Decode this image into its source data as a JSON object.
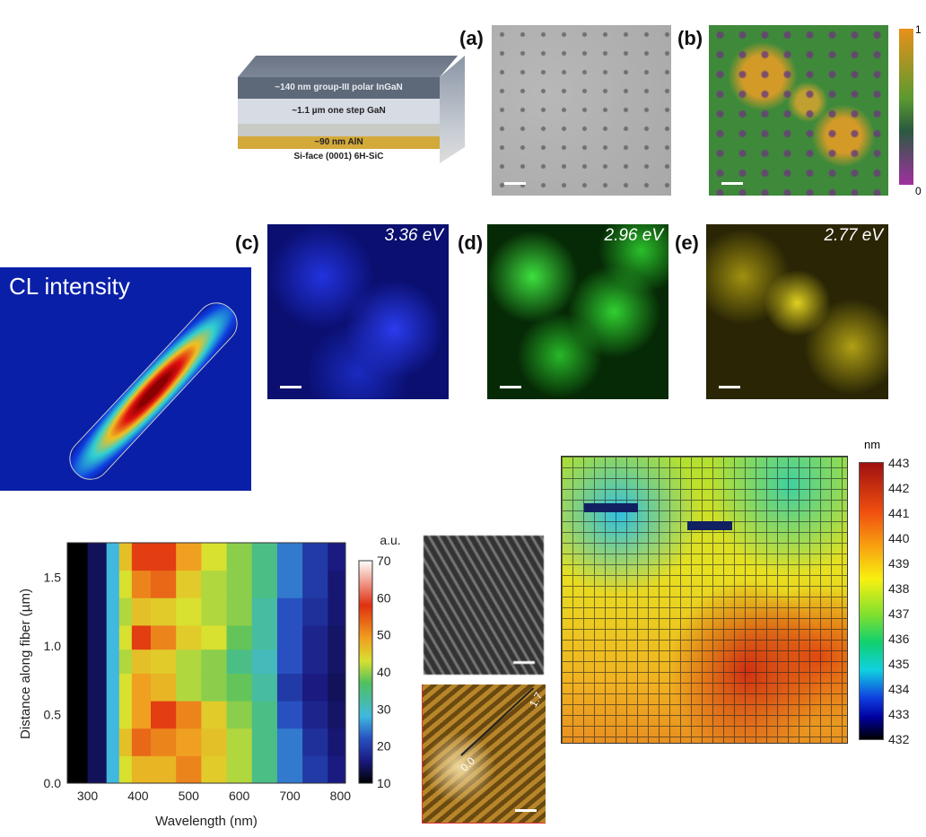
{
  "layers": {
    "ingan": "~140 nm group-III polar InGaN",
    "gan": "~1.1 µm one step GaN",
    "aln": "~90 nm AlN",
    "substrate": "Si-face (0001) 6H-SiC"
  },
  "panels": {
    "a": "(a)",
    "b": "(b)",
    "c": "(c)",
    "d": "(d)",
    "e": "(e)"
  },
  "energies": {
    "c": "3.36 eV",
    "d": "2.96 eV",
    "e": "2.77 eV"
  },
  "colorbar_b": {
    "max": "1",
    "min": "0"
  },
  "cl_panel": {
    "title": "CL intensity"
  },
  "fiber_marker": {
    "start": "0.0",
    "end": "1.7"
  },
  "chart_data": [
    {
      "type": "heatmap",
      "title": "",
      "xlabel": "Wavelength (nm)",
      "ylabel": "Distance along fiber (µm)",
      "xlim": [
        260,
        810
      ],
      "ylim": [
        0,
        1.75
      ],
      "xticks": [
        "300",
        "400",
        "500",
        "600",
        "700",
        "800"
      ],
      "yticks": [
        "0.0",
        "0.5",
        "1.0",
        "1.5"
      ],
      "colorbar": {
        "label": "a.u.",
        "range": [
          10,
          70
        ],
        "ticks": [
          "70",
          "60",
          "50",
          "40",
          "30",
          "20",
          "10"
        ]
      },
      "x": [
        275,
        325,
        350,
        375,
        400,
        450,
        500,
        550,
        600,
        650,
        700,
        750,
        800
      ],
      "y": [
        0.1,
        0.3,
        0.5,
        0.7,
        0.9,
        1.05,
        1.25,
        1.45,
        1.65
      ],
      "values": [
        [
          5,
          12,
          25,
          42,
          46,
          46,
          50,
          44,
          40,
          32,
          22,
          18,
          15
        ],
        [
          5,
          12,
          25,
          45,
          52,
          50,
          48,
          45,
          40,
          32,
          22,
          17,
          14
        ],
        [
          5,
          12,
          25,
          42,
          48,
          55,
          50,
          44,
          38,
          32,
          20,
          16,
          13
        ],
        [
          5,
          12,
          25,
          42,
          48,
          46,
          40,
          38,
          36,
          30,
          18,
          15,
          12
        ],
        [
          5,
          12,
          25,
          40,
          45,
          44,
          40,
          38,
          32,
          28,
          20,
          16,
          13
        ],
        [
          5,
          12,
          25,
          42,
          55,
          50,
          44,
          42,
          36,
          30,
          20,
          16,
          13
        ],
        [
          5,
          12,
          25,
          40,
          45,
          44,
          42,
          40,
          38,
          30,
          20,
          17,
          14
        ],
        [
          5,
          12,
          25,
          42,
          50,
          52,
          44,
          40,
          38,
          32,
          22,
          18,
          14
        ],
        [
          5,
          12,
          25,
          45,
          55,
          55,
          48,
          42,
          38,
          32,
          22,
          18,
          15
        ]
      ]
    },
    {
      "type": "heatmap",
      "title": "",
      "colorbar": {
        "label": "nm",
        "range": [
          432,
          443
        ],
        "ticks": [
          "443",
          "442",
          "441",
          "440",
          "439",
          "438",
          "437",
          "436",
          "435",
          "434",
          "433",
          "432"
        ]
      }
    }
  ]
}
